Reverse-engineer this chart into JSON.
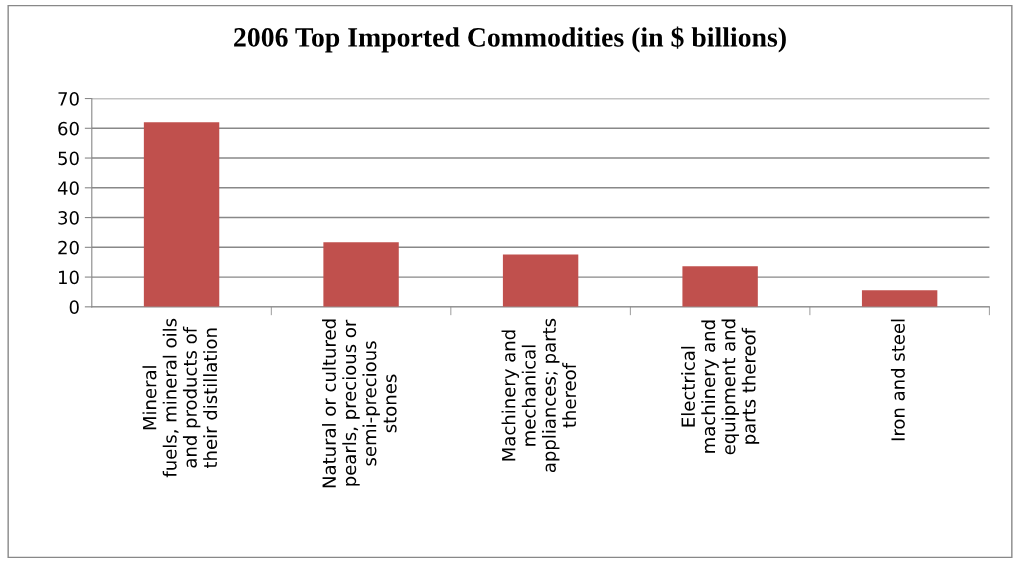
{
  "chart_data": {
    "type": "bar",
    "title": "2006 Top Imported Commodities (in $ billions)",
    "categories": [
      "Mineral\nfuels, mineral oils\nand products of\ntheir distillation",
      "Natural or cultured\npearls, precious or\nsemi-precious\nstones",
      "Machinery and\nmechanical\nappliances; parts\nthereof",
      "Electrical\nmachinery and\nequipment and\nparts thereof",
      "Iron and steel"
    ],
    "values": [
      62,
      21.7,
      17.6,
      13.6,
      5.6
    ],
    "color": "#c0504d",
    "ylim": [
      0,
      70
    ],
    "yticks": [
      0,
      10,
      20,
      30,
      40,
      50,
      60,
      70
    ],
    "grid": "y"
  }
}
